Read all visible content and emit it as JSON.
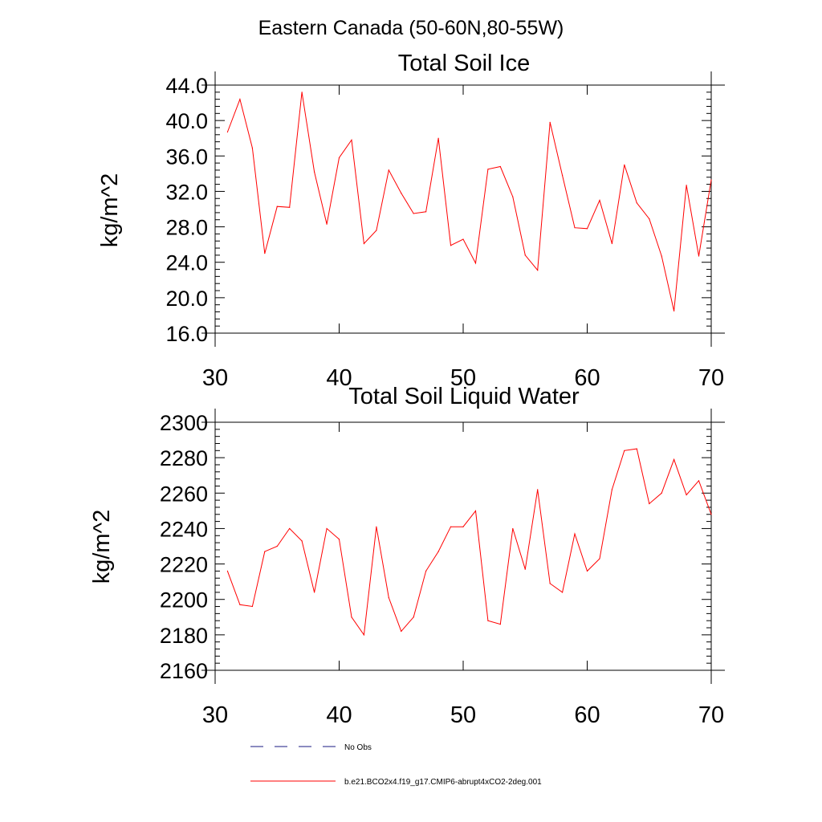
{
  "figure": {
    "supertitle": "Eastern Canada (50-60N,80-55W)"
  },
  "chart_data": [
    {
      "type": "line",
      "title": "Total Soil Ice",
      "xlabel": "",
      "ylabel": "kg/m^2",
      "xlim": [
        30,
        70
      ],
      "ylim": [
        16,
        44
      ],
      "xticks": [
        30,
        40,
        50,
        60,
        70
      ],
      "xtick_labels": [
        "30",
        "40",
        "50",
        "60",
        "70"
      ],
      "yticks": [
        16,
        20,
        24,
        28,
        32,
        36,
        40,
        44
      ],
      "ytick_labels": [
        "16.0",
        "20.0",
        "24.0",
        "28.0",
        "32.0",
        "36.0",
        "40.0",
        "44.0"
      ],
      "grid": false,
      "series": [
        {
          "name": "b.e21.BCO2x4.f19_g17.CMIP6-abrupt4xCO2-2deg.001",
          "color": "#ff0000",
          "x": [
            31,
            32,
            33,
            34,
            35,
            36,
            37,
            38,
            39,
            40,
            41,
            42,
            43,
            44,
            45,
            46,
            47,
            48,
            49,
            50,
            51,
            52,
            53,
            54,
            55,
            56,
            57,
            58,
            59,
            60,
            61,
            62,
            63,
            64,
            65,
            66,
            67,
            68,
            69,
            70
          ],
          "values": [
            38.7,
            42.4,
            36.9,
            25.0,
            30.3,
            30.2,
            43.2,
            34.2,
            28.3,
            35.8,
            37.8,
            26.1,
            27.6,
            34.4,
            31.8,
            29.5,
            29.7,
            38.0,
            25.9,
            26.6,
            23.9,
            34.5,
            34.8,
            31.4,
            24.8,
            23.1,
            39.8,
            33.8,
            27.9,
            27.8,
            31.0,
            26.1,
            35.0,
            30.7,
            28.9,
            24.7,
            18.5,
            32.7,
            24.7,
            33.3
          ]
        }
      ]
    },
    {
      "type": "line",
      "title": "Total Soil Liquid Water",
      "xlabel": "",
      "ylabel": "kg/m^2",
      "xlim": [
        30,
        70
      ],
      "ylim": [
        2160,
        2300
      ],
      "xticks": [
        30,
        40,
        50,
        60,
        70
      ],
      "xtick_labels": [
        "30",
        "40",
        "50",
        "60",
        "70"
      ],
      "yticks": [
        2160,
        2180,
        2200,
        2220,
        2240,
        2260,
        2280,
        2300
      ],
      "ytick_labels": [
        "2160",
        "2180",
        "2200",
        "2220",
        "2240",
        "2260",
        "2280",
        "2300"
      ],
      "grid": false,
      "series": [
        {
          "name": "b.e21.BCO2x4.f19_g17.CMIP6-abrupt4xCO2-2deg.001",
          "color": "#ff0000",
          "x": [
            31,
            32,
            33,
            34,
            35,
            36,
            37,
            38,
            39,
            40,
            41,
            42,
            43,
            44,
            45,
            46,
            47,
            48,
            49,
            50,
            51,
            52,
            53,
            54,
            55,
            56,
            57,
            58,
            59,
            60,
            61,
            62,
            63,
            64,
            65,
            66,
            67,
            68,
            69,
            70
          ],
          "values": [
            2216,
            2197,
            2196,
            2227,
            2230,
            2240,
            2233,
            2204,
            2240,
            2234,
            2190,
            2180,
            2241,
            2201,
            2182,
            2190,
            2216,
            2227,
            2241,
            2241,
            2250,
            2188,
            2186,
            2240,
            2217,
            2262,
            2209,
            2204,
            2237,
            2216,
            2223,
            2262,
            2284,
            2285,
            2254,
            2260,
            2279,
            2259,
            2267,
            2248
          ]
        }
      ]
    }
  ],
  "legend": {
    "position": "bottom-left",
    "entries": [
      {
        "label": "No Obs",
        "style": "dashed",
        "color": "#1a1a80"
      },
      {
        "label": "b.e21.BCO2x4.f19_g17.CMIP6-abrupt4xCO2-2deg.001",
        "style": "solid",
        "color": "#ff0000"
      }
    ]
  }
}
